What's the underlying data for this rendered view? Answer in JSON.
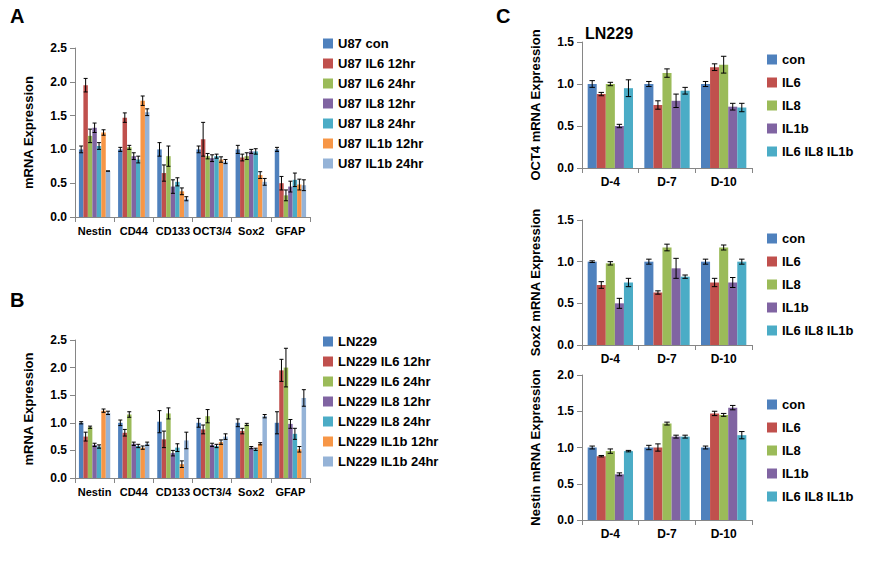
{
  "chart_data": [
    {
      "type": "bar",
      "annotations": [
        "A"
      ],
      "y_label": "mRNA Expression",
      "grid": false,
      "legend": "right",
      "categories": [
        "Nestin",
        "CD44",
        "CD133",
        "OCT3/4",
        "Sox2",
        "GFAP"
      ],
      "ylim": [
        0,
        2.5
      ],
      "yticks": [
        {
          "value": 0,
          "label": "0.0"
        },
        {
          "value": 0.5,
          "label": "0.5"
        },
        {
          "value": 1,
          "label": "1.0"
        },
        {
          "value": 1.5,
          "label": "1.5"
        },
        {
          "value": 2,
          "label": "2.0"
        },
        {
          "value": 2.5,
          "label": "2.5"
        }
      ],
      "series": [
        {
          "name": "U87 con",
          "color": "#4F81BD",
          "values": [
            1.0,
            1.0,
            1.0,
            1.0,
            1.0,
            1.0
          ],
          "errors": [
            0.05,
            0.03,
            0.1,
            0.05,
            0.06,
            0.03
          ]
        },
        {
          "name": "U87 IL6 12hr",
          "color": "#C0504D",
          "values": [
            1.95,
            1.47,
            0.65,
            1.15,
            0.88,
            0.5
          ],
          "errors": [
            0.1,
            0.07,
            0.12,
            0.25,
            0.05,
            0.1
          ]
        },
        {
          "name": "U87 IL6 24hr",
          "color": "#9BBB59",
          "values": [
            1.2,
            1.03,
            0.9,
            0.9,
            0.9,
            0.32
          ],
          "errors": [
            0.1,
            0.03,
            0.15,
            0.04,
            0.05,
            0.08
          ]
        },
        {
          "name": "U87 IL8 12hr",
          "color": "#8064A2",
          "values": [
            1.32,
            0.9,
            0.45,
            0.87,
            0.97,
            0.45
          ],
          "errors": [
            0.07,
            0.05,
            0.1,
            0.05,
            0.03,
            0.08
          ]
        },
        {
          "name": "U87 IL8 24hr",
          "color": "#4BACC6",
          "values": [
            1.05,
            0.85,
            0.52,
            0.9,
            0.97,
            0.55
          ],
          "errors": [
            0.05,
            0.05,
            0.06,
            0.03,
            0.04,
            0.1
          ]
        },
        {
          "name": "U87 IL1b 12hr",
          "color": "#F79646",
          "values": [
            1.25,
            1.72,
            0.38,
            0.85,
            0.62,
            0.48
          ],
          "errors": [
            0.04,
            0.07,
            0.05,
            0.04,
            0.05,
            0.08
          ]
        },
        {
          "name": "U87 IL1b 24hr",
          "color": "#95B3D7",
          "values": [
            0.68,
            1.55,
            0.27,
            0.82,
            0.52,
            0.47
          ],
          "errors": [
            0.0,
            0.05,
            0.03,
            0.03,
            0.05,
            0.08
          ]
        }
      ]
    },
    {
      "type": "bar",
      "annotations": [
        "B"
      ],
      "y_label": "mRNA Expression",
      "grid": false,
      "legend": "right",
      "categories": [
        "Nestin",
        "CD44",
        "CD133",
        "OCT3/4",
        "Sox2",
        "GFAP"
      ],
      "ylim": [
        0,
        2.5
      ],
      "yticks": [
        {
          "value": 0,
          "label": "0.0"
        },
        {
          "value": 0.5,
          "label": "0.5"
        },
        {
          "value": 1,
          "label": "1.0"
        },
        {
          "value": 1.5,
          "label": "1.5"
        },
        {
          "value": 2,
          "label": "2.0"
        },
        {
          "value": 2.5,
          "label": "2.5"
        }
      ],
      "series": [
        {
          "name": "LN229",
          "color": "#4F81BD",
          "values": [
            1.0,
            1.0,
            1.02,
            1.0,
            1.0,
            1.0
          ],
          "errors": [
            0.02,
            0.05,
            0.2,
            0.08,
            0.07,
            0.2
          ]
        },
        {
          "name": "LN229 IL6 12hr",
          "color": "#C0504D",
          "values": [
            0.75,
            0.82,
            0.7,
            0.88,
            0.85,
            1.95
          ],
          "errors": [
            0.08,
            0.06,
            0.15,
            0.08,
            0.05,
            0.2
          ]
        },
        {
          "name": "LN229 IL6 24hr",
          "color": "#9BBB59",
          "values": [
            0.92,
            1.15,
            1.17,
            1.12,
            0.97,
            2.0
          ],
          "errors": [
            0.02,
            0.05,
            0.1,
            0.12,
            0.02,
            0.35
          ]
        },
        {
          "name": "LN229 IL8 12hr",
          "color": "#8064A2",
          "values": [
            0.6,
            0.62,
            0.45,
            0.6,
            0.55,
            0.98
          ],
          "errors": [
            0.03,
            0.03,
            0.05,
            0.03,
            0.02,
            0.08
          ]
        },
        {
          "name": "LN229 IL8 24hr",
          "color": "#4BACC6",
          "values": [
            0.57,
            0.58,
            0.55,
            0.58,
            0.52,
            0.8
          ],
          "errors": [
            0.03,
            0.03,
            0.07,
            0.03,
            0.02,
            0.1
          ]
        },
        {
          "name": "LN229 IL1b 12hr",
          "color": "#F79646",
          "values": [
            1.22,
            0.55,
            0.25,
            0.65,
            0.62,
            0.52
          ],
          "errors": [
            0.03,
            0.03,
            0.06,
            0.04,
            0.02,
            0.05
          ]
        },
        {
          "name": "LN229 IL1b 24hr",
          "color": "#95B3D7",
          "values": [
            1.18,
            0.62,
            0.68,
            0.75,
            1.12,
            1.45
          ],
          "errors": [
            0.03,
            0.03,
            0.15,
            0.05,
            0.03,
            0.15
          ]
        }
      ]
    },
    {
      "type": "bar",
      "annotations": [
        "C"
      ],
      "title": "LN229",
      "y_label": "OCT4 mRNA Expression",
      "grid": false,
      "legend": "right",
      "categories": [
        "D-4",
        "D-7",
        "D-10"
      ],
      "ylim": [
        0,
        1.5
      ],
      "yticks": [
        {
          "value": 0,
          "label": "0.0"
        },
        {
          "value": 0.5,
          "label": "0.5"
        },
        {
          "value": 1,
          "label": "1.0"
        },
        {
          "value": 1.5,
          "label": "1.5"
        }
      ],
      "series": [
        {
          "name": "con",
          "color": "#4F81BD",
          "values": [
            1.0,
            1.0,
            1.0
          ],
          "errors": [
            0.04,
            0.03,
            0.03
          ]
        },
        {
          "name": "IL6",
          "color": "#C0504D",
          "values": [
            0.88,
            0.75,
            1.2
          ],
          "errors": [
            0.02,
            0.05,
            0.04
          ]
        },
        {
          "name": "IL8",
          "color": "#9BBB59",
          "values": [
            1.0,
            1.13,
            1.23
          ],
          "errors": [
            0.02,
            0.05,
            0.1
          ]
        },
        {
          "name": "IL1b",
          "color": "#8064A2",
          "values": [
            0.5,
            0.8,
            0.73
          ],
          "errors": [
            0.02,
            0.08,
            0.04
          ]
        },
        {
          "name": "IL6 IL8 IL1b",
          "color": "#4BACC6",
          "values": [
            0.95,
            0.92,
            0.72
          ],
          "errors": [
            0.1,
            0.04,
            0.05
          ]
        }
      ]
    },
    {
      "type": "bar",
      "y_label": "Sox2 mRNA Expression",
      "grid": false,
      "legend": "right",
      "categories": [
        "D-4",
        "D-7",
        "D-10"
      ],
      "ylim": [
        0,
        1.5
      ],
      "yticks": [
        {
          "value": 0,
          "label": "0.0"
        },
        {
          "value": 0.5,
          "label": "0.5"
        },
        {
          "value": 1,
          "label": "1.0"
        },
        {
          "value": 1.5,
          "label": "1.5"
        }
      ],
      "series": [
        {
          "name": "con",
          "color": "#4F81BD",
          "values": [
            1.0,
            1.0,
            1.0
          ],
          "errors": [
            0.01,
            0.03,
            0.03
          ]
        },
        {
          "name": "IL6",
          "color": "#C0504D",
          "values": [
            0.72,
            0.63,
            0.75
          ],
          "errors": [
            0.04,
            0.02,
            0.05
          ]
        },
        {
          "name": "IL8",
          "color": "#9BBB59",
          "values": [
            0.98,
            1.17,
            1.17
          ],
          "errors": [
            0.02,
            0.04,
            0.03
          ]
        },
        {
          "name": "IL1b",
          "color": "#8064A2",
          "values": [
            0.5,
            0.92,
            0.75
          ],
          "errors": [
            0.06,
            0.12,
            0.06
          ]
        },
        {
          "name": "IL6 IL8 IL1b",
          "color": "#4BACC6",
          "values": [
            0.75,
            0.82,
            1.0
          ],
          "errors": [
            0.05,
            0.02,
            0.03
          ]
        }
      ]
    },
    {
      "type": "bar",
      "y_label": "Nestin mRNA Expression",
      "grid": false,
      "legend": "right",
      "categories": [
        "D-4",
        "D-7",
        "D-10"
      ],
      "ylim": [
        0,
        2.0
      ],
      "yticks": [
        {
          "value": 0,
          "label": "0.0"
        },
        {
          "value": 0.5,
          "label": "0.5"
        },
        {
          "value": 1,
          "label": "1.0"
        },
        {
          "value": 1.5,
          "label": "1.5"
        },
        {
          "value": 2,
          "label": "2.0"
        }
      ],
      "series": [
        {
          "name": "con",
          "color": "#4F81BD",
          "values": [
            1.0,
            1.0,
            1.0
          ],
          "errors": [
            0.02,
            0.03,
            0.02
          ]
        },
        {
          "name": "IL6",
          "color": "#C0504D",
          "values": [
            0.88,
            1.0,
            1.47
          ],
          "errors": [
            0.01,
            0.05,
            0.03
          ]
        },
        {
          "name": "IL8",
          "color": "#9BBB59",
          "values": [
            0.95,
            1.33,
            1.45
          ],
          "errors": [
            0.03,
            0.02,
            0.02
          ]
        },
        {
          "name": "IL1b",
          "color": "#8064A2",
          "values": [
            0.63,
            1.15,
            1.55
          ],
          "errors": [
            0.02,
            0.02,
            0.03
          ]
        },
        {
          "name": "IL6 IL8 IL1b",
          "color": "#4BACC6",
          "values": [
            0.95,
            1.15,
            1.17
          ],
          "errors": [
            0.01,
            0.02,
            0.05
          ]
        }
      ]
    }
  ]
}
